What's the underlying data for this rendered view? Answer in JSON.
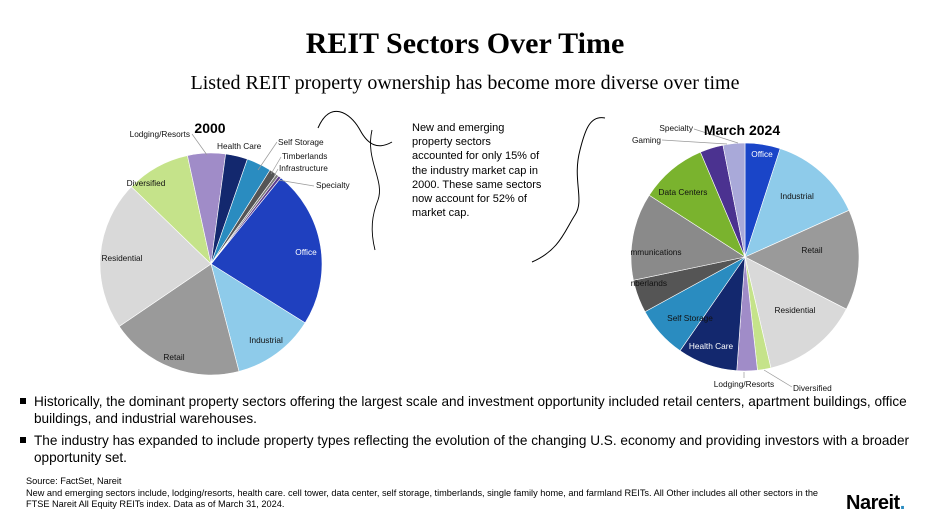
{
  "title": "REIT Sectors Over Time",
  "subtitle": "Listed REIT property ownership has become more diverse over time",
  "callout": "New and emerging property sectors accounted for only 15% of the industry market cap in 2000. These same sectors now account for 52% of market cap.",
  "chart_data": [
    {
      "type": "pie",
      "title": "2000",
      "unit": "% of market cap (estimated from slice size)",
      "slices": [
        {
          "label": "Office",
          "value": 23.0,
          "color": "#1f40bf"
        },
        {
          "label": "Industrial",
          "value": 12.0,
          "color": "#8ecbea"
        },
        {
          "label": "Retail",
          "value": 19.5,
          "color": "#9a9a9a"
        },
        {
          "label": "Residential",
          "value": 21.7,
          "color": "#d9d9d9"
        },
        {
          "label": "Diversified",
          "value": 9.3,
          "color": "#c5e38a"
        },
        {
          "label": "Lodging/Resorts",
          "value": 5.5,
          "color": "#a08cc8"
        },
        {
          "label": "Health Care",
          "value": 3.2,
          "color": "#13286e"
        },
        {
          "label": "Self Storage",
          "value": 3.6,
          "color": "#2a8cc0"
        },
        {
          "label": "Timberlands",
          "value": 1.1,
          "color": "#555555"
        },
        {
          "label": "Infrastructure",
          "value": 0.4,
          "color": "#7a7a7a"
        },
        {
          "label": "Specialty",
          "value": 0.4,
          "color": "#5a3a8c"
        }
      ]
    },
    {
      "type": "pie",
      "title": "March 2024",
      "unit": "% of market cap (estimated from slice size)",
      "slices": [
        {
          "label": "Office",
          "value": 5.0,
          "color": "#1a45c8"
        },
        {
          "label": "Industrial",
          "value": 13.3,
          "color": "#8ecbea"
        },
        {
          "label": "Retail",
          "value": 14.3,
          "color": "#9a9a9a"
        },
        {
          "label": "Residential",
          "value": 13.8,
          "color": "#d9d9d9"
        },
        {
          "label": "Diversified",
          "value": 1.9,
          "color": "#c5e38a"
        },
        {
          "label": "Lodging/Resorts",
          "value": 2.9,
          "color": "#a08cc8"
        },
        {
          "label": "Health Care",
          "value": 8.5,
          "color": "#13286e"
        },
        {
          "label": "Self Storage",
          "value": 7.4,
          "color": "#2a8cc0"
        },
        {
          "label": "Timberlands",
          "value": 4.7,
          "color": "#555555"
        },
        {
          "label": "Telecommunications",
          "value": 12.4,
          "color": "#8a8a8a"
        },
        {
          "label": "Data Centers",
          "value": 9.5,
          "color": "#7ab32e"
        },
        {
          "label": "Gaming",
          "value": 3.3,
          "color": "#4b3290"
        },
        {
          "label": "Specialty",
          "value": 3.1,
          "color": "#a9a9d9"
        }
      ]
    }
  ],
  "bullets": [
    "Historically, the dominant property sectors offering the largest scale and investment opportunity included retail centers, apartment buildings, office buildings, and industrial warehouses.",
    "The industry has expanded to include property types reflecting the evolution of the changing U.S. economy and providing investors with a broader opportunity set."
  ],
  "source": "Source: FactSet, Nareit",
  "footnote": "New and emerging sectors include, lodging/resorts, health care. cell tower, data center, self storage, timberlands, single family home, and farmland REITs. All Other includes all other sectors in the FTSE Nareit  All Equity REITs index. Data as of March 31, 2024.",
  "logo": "Nareit"
}
